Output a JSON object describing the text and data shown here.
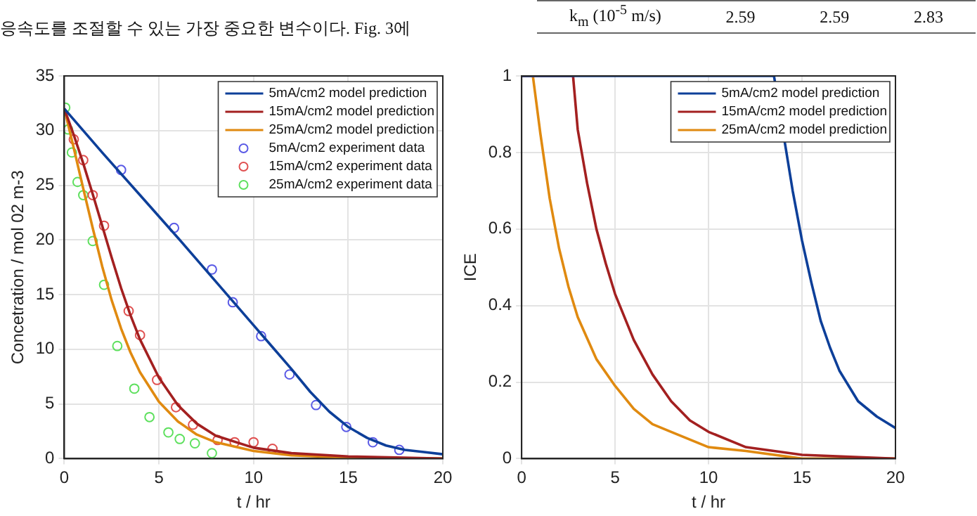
{
  "chart_data": [
    {
      "type": "line",
      "annotations": [
        "응속도를 조절할 수 있는 가장 중요한 변수이다. Fig. 3에"
      ],
      "xlabel": "t / hr",
      "ylabel": "Concetration / mol 02 m-3",
      "xlim": [
        0,
        20
      ],
      "xticks": [
        0,
        5,
        10,
        15,
        20
      ],
      "ylim": [
        0,
        35
      ],
      "yticks": [
        0,
        5,
        10,
        15,
        20,
        25,
        30,
        35
      ],
      "grid": true,
      "legend": "top right",
      "series": [
        {
          "name": "5mA/cm2 model prediction",
          "color": "#0d3f99",
          "x": [
            0,
            2,
            4,
            6,
            8,
            10,
            11,
            12,
            13,
            14,
            15,
            16,
            17,
            18,
            19,
            20
          ],
          "values": [
            32,
            28,
            24.1,
            20.2,
            16.2,
            12.2,
            10.2,
            8.2,
            6.1,
            4.3,
            2.9,
            1.9,
            1.2,
            0.8,
            0.6,
            0.4
          ]
        },
        {
          "name": "15mA/cm2 model prediction",
          "color": "#a32020",
          "x": [
            0,
            0.5,
            1,
            1.5,
            2,
            2.5,
            3,
            3.5,
            4,
            5,
            6,
            7,
            8,
            10,
            12,
            15,
            20
          ],
          "values": [
            32,
            29.6,
            27,
            24.2,
            21.3,
            18.4,
            15.6,
            13.1,
            10.9,
            7.4,
            4.9,
            3.2,
            2.1,
            1,
            0.5,
            0.2,
            0
          ]
        },
        {
          "name": "25mA/cm2 model prediction",
          "color": "#e08a10",
          "x": [
            0,
            0.5,
            1,
            1.5,
            2,
            2.5,
            3,
            3.5,
            4,
            5,
            6,
            7,
            8,
            10,
            12,
            15,
            20
          ],
          "values": [
            32,
            28.4,
            24.7,
            21.1,
            17.6,
            14.5,
            11.9,
            9.7,
            7.9,
            5.2,
            3.4,
            2.2,
            1.5,
            0.7,
            0.3,
            0.1,
            0
          ]
        },
        {
          "name": "5mA/cm2 experiment data",
          "type": "scatter",
          "marker": "circle",
          "color": "#5a5ae6",
          "x": [
            3.0,
            5.8,
            7.8,
            8.9,
            10.4,
            11.9,
            13.3,
            14.9,
            16.3,
            17.7
          ],
          "values": [
            26.4,
            21.1,
            17.3,
            14.3,
            11.2,
            7.7,
            4.9,
            2.9,
            1.5,
            0.8
          ]
        },
        {
          "name": "15mA/cm2 experiment data",
          "type": "scatter",
          "marker": "circle",
          "color": "#e05050",
          "x": [
            0.5,
            1.0,
            1.5,
            2.1,
            3.4,
            4.0,
            4.9,
            5.9,
            6.8,
            8.1,
            9.0,
            10.0,
            11.0
          ],
          "values": [
            29.2,
            27.3,
            24.1,
            21.3,
            13.5,
            11.3,
            7.2,
            4.7,
            3.1,
            1.7,
            1.5,
            1.5,
            0.9
          ]
        },
        {
          "name": "25mA/cm2 experiment data",
          "type": "scatter",
          "marker": "circle",
          "color": "#5ee05e",
          "x": [
            0.05,
            0.2,
            0.4,
            0.7,
            1.0,
            1.5,
            2.1,
            2.8,
            3.7,
            4.5,
            5.5,
            6.1,
            6.9,
            7.8
          ],
          "values": [
            32.1,
            30.1,
            28,
            25.3,
            24.1,
            19.9,
            15.9,
            10.3,
            6.4,
            3.8,
            2.4,
            1.8,
            1.4,
            0.5
          ]
        }
      ]
    },
    {
      "type": "line",
      "annotations": [
        "k$_{m}$ (10$^{-5}$ m/s)",
        "2.59",
        "2.59",
        "2.83"
      ],
      "xlabel": "t / hr",
      "ylabel": "ICE",
      "xlim": [
        0,
        20
      ],
      "xticks": [
        0,
        5,
        10,
        15,
        20
      ],
      "ylim": [
        0,
        1
      ],
      "yticks": [
        0,
        0.2,
        0.4,
        0.6,
        0.8,
        1
      ],
      "grid": true,
      "legend": "top right",
      "series": [
        {
          "name": "5mA/cm2 model prediction",
          "color": "#0d3f99",
          "x": [
            0,
            13.5,
            14.5,
            15,
            15.5,
            16,
            16.5,
            17,
            18,
            19,
            20
          ],
          "values": [
            1,
            1,
            0.7,
            0.57,
            0.46,
            0.36,
            0.29,
            0.23,
            0.15,
            0.11,
            0.08
          ]
        },
        {
          "name": "15mA/cm2 model prediction",
          "color": "#a32020",
          "x": [
            0,
            2.75,
            3,
            3.5,
            4,
            4.5,
            5,
            6,
            7,
            8,
            9,
            10,
            12,
            15,
            20
          ],
          "values": [
            1,
            1,
            0.86,
            0.72,
            0.6,
            0.51,
            0.43,
            0.31,
            0.22,
            0.15,
            0.1,
            0.07,
            0.03,
            0.01,
            0
          ]
        },
        {
          "name": "25mA/cm2 model prediction",
          "color": "#e08a10",
          "x": [
            0,
            0.6,
            1,
            1.5,
            2,
            2.5,
            3,
            4,
            5,
            6,
            7,
            8,
            10,
            12,
            15,
            20
          ],
          "values": [
            1,
            1,
            0.85,
            0.68,
            0.55,
            0.45,
            0.37,
            0.26,
            0.19,
            0.13,
            0.09,
            0.07,
            0.03,
            0.02,
            0,
            0
          ]
        }
      ]
    }
  ]
}
